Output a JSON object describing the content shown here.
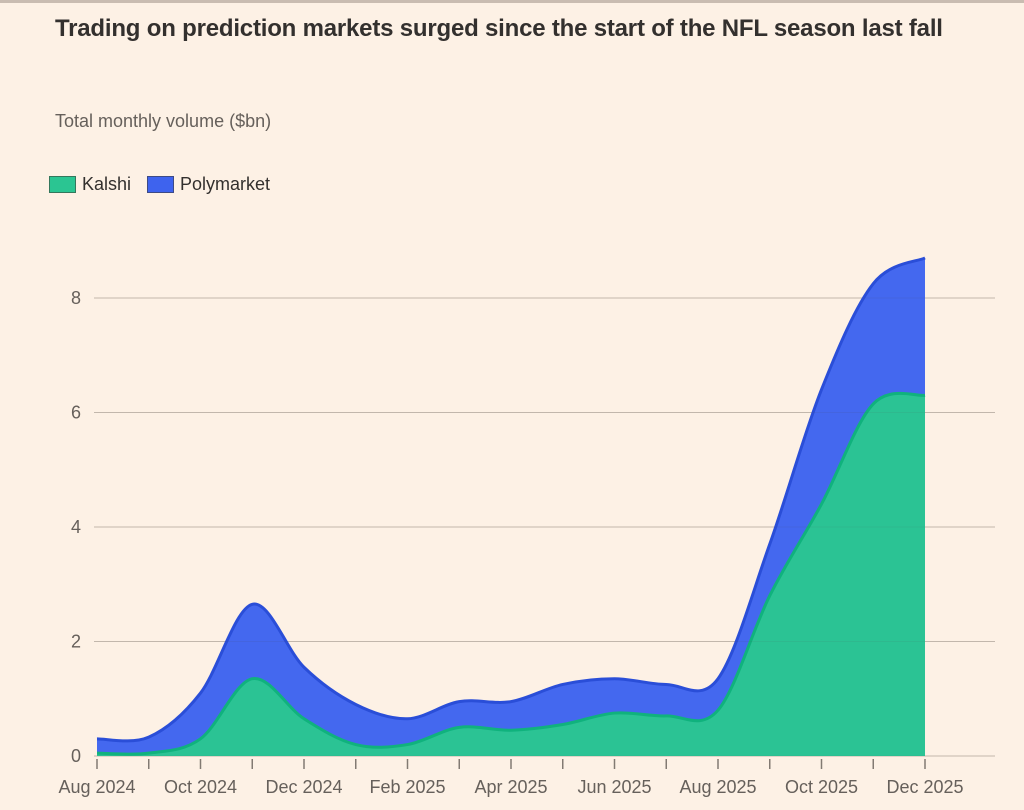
{
  "header": {
    "title": "Trading on prediction markets surged since the start of the NFL season last fall",
    "subtitle": "Total monthly volume ($bn)"
  },
  "legend": {
    "items": [
      {
        "label": "Kalshi",
        "color": "#2bc592"
      },
      {
        "label": "Polymarket",
        "color": "#3e63ee"
      }
    ]
  },
  "colors": {
    "background": "#fdf1e5",
    "gridline": "#ccc0b5",
    "tick": "#827a72",
    "axis_text": "#66605b",
    "title_text": "#33302e",
    "kalshi_fill": "#2bc592",
    "kalshi_stroke": "#10b27d",
    "polymarket_fill": "#3e63ee",
    "polymarket_stroke": "#2a4ed8"
  },
  "chart_data": {
    "type": "area",
    "stacked": true,
    "title": "Trading on prediction markets surged since the start of the NFL season last fall",
    "ylabel": "Total monthly volume ($bn)",
    "xlabel": "",
    "grid": true,
    "legend_position": "top-left",
    "ylim": [
      0,
      9
    ],
    "yticks": [
      0,
      2,
      4,
      6,
      8
    ],
    "x": [
      "Aug 2024",
      "Sep 2024",
      "Oct 2024",
      "Nov 2024",
      "Dec 2024",
      "Jan 2025",
      "Feb 2025",
      "Mar 2025",
      "Apr 2025",
      "May 2025",
      "Jun 2025",
      "Jul 2025",
      "Aug 2025",
      "Sep 2025",
      "Oct 2025",
      "Nov 2025",
      "Dec 2025"
    ],
    "x_label_every": 2,
    "series": [
      {
        "name": "Kalshi",
        "fill": "#2bc592",
        "stroke": "#10b27d",
        "values": [
          0.05,
          0.05,
          0.3,
          1.35,
          0.65,
          0.2,
          0.2,
          0.5,
          0.45,
          0.55,
          0.75,
          0.7,
          0.8,
          2.8,
          4.4,
          6.15,
          6.3
        ]
      },
      {
        "name": "Polymarket",
        "fill": "#3e63ee",
        "stroke": "#2a4ed8",
        "values": [
          0.25,
          0.28,
          0.8,
          1.3,
          0.9,
          0.7,
          0.45,
          0.45,
          0.5,
          0.7,
          0.6,
          0.55,
          0.55,
          0.9,
          2.0,
          2.1,
          2.4
        ]
      }
    ]
  }
}
